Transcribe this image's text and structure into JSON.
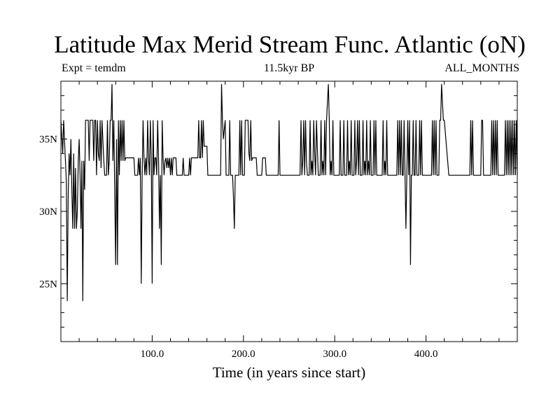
{
  "chart_data": {
    "type": "line",
    "title": "Latitude Max Merid Stream Func. Atlantic (oN)",
    "subtitle": "11.5kyr BP",
    "left_label": "Expt = temdm",
    "right_label": "ALL_MONTHS",
    "xlabel": "Time (in years since start)",
    "ylabel": "",
    "xlim": [
      0,
      500
    ],
    "ylim": [
      21,
      39
    ],
    "xticks": [
      {
        "value": 100,
        "label": "100.0"
      },
      {
        "value": 200,
        "label": "200.0"
      },
      {
        "value": 300,
        "label": "300.0"
      },
      {
        "value": 400,
        "label": "400.0"
      }
    ],
    "yticks": [
      {
        "value": 25,
        "label": "25N"
      },
      {
        "value": 30,
        "label": "30N"
      },
      {
        "value": 35,
        "label": "35N"
      }
    ],
    "series": [
      {
        "name": "Latitude Max Merid Stream Func.",
        "points": [
          [
            0,
            36.3
          ],
          [
            2,
            34.0
          ],
          [
            3,
            36.3
          ],
          [
            5,
            33.5
          ],
          [
            6,
            32.0
          ],
          [
            7,
            23.8
          ],
          [
            8,
            31.0
          ],
          [
            9,
            34.0
          ],
          [
            10,
            32.5
          ],
          [
            11,
            35.0
          ],
          [
            12,
            31.5
          ],
          [
            13,
            28.8
          ],
          [
            14,
            34.0
          ],
          [
            15,
            28.8
          ],
          [
            16,
            33.0
          ],
          [
            17,
            28.8
          ],
          [
            18,
            30.0
          ],
          [
            19,
            33.5
          ],
          [
            20,
            35.0
          ],
          [
            21,
            32.5
          ],
          [
            22,
            28.8
          ],
          [
            23,
            33.5
          ],
          [
            24,
            23.8
          ],
          [
            25,
            33.5
          ],
          [
            26,
            31.5
          ],
          [
            27,
            36.3
          ],
          [
            30,
            36.3
          ],
          [
            31,
            33.5
          ],
          [
            32,
            36.3
          ],
          [
            35,
            36.3
          ],
          [
            36,
            33.5
          ],
          [
            37,
            36.3
          ],
          [
            38,
            36.3
          ],
          [
            39,
            32.5
          ],
          [
            40,
            36.3
          ],
          [
            41,
            34.0
          ],
          [
            42,
            33.5
          ],
          [
            43,
            36.3
          ],
          [
            44,
            33.0
          ],
          [
            45,
            36.3
          ],
          [
            47,
            33.5
          ],
          [
            48,
            32.5
          ],
          [
            50,
            32.5
          ],
          [
            51,
            36.3
          ],
          [
            52,
            32.5
          ],
          [
            53,
            33.5
          ],
          [
            54,
            36.3
          ],
          [
            55,
            36.3
          ],
          [
            56,
            38.8
          ],
          [
            57,
            33.5
          ],
          [
            58,
            36.3
          ],
          [
            60,
            26.3
          ],
          [
            61,
            35.0
          ],
          [
            62,
            26.3
          ],
          [
            63,
            36.3
          ],
          [
            64,
            32.5
          ],
          [
            65,
            36.3
          ],
          [
            66,
            33.5
          ],
          [
            67,
            36.3
          ],
          [
            68,
            33.5
          ],
          [
            69,
            36.3
          ],
          [
            70,
            33.5
          ],
          [
            71,
            33.7
          ],
          [
            80,
            33.7
          ],
          [
            81,
            32.5
          ],
          [
            84,
            32.5
          ],
          [
            85,
            33.7
          ],
          [
            86,
            32.5
          ],
          [
            87,
            33.7
          ],
          [
            88,
            25.0
          ],
          [
            89,
            32.5
          ],
          [
            90,
            36.3
          ],
          [
            91,
            33.7
          ],
          [
            92,
            32.5
          ],
          [
            93,
            33.7
          ],
          [
            94,
            32.5
          ],
          [
            95,
            36.3
          ],
          [
            96,
            33.7
          ],
          [
            97,
            32.5
          ],
          [
            98,
            36.3
          ],
          [
            99,
            33.7
          ],
          [
            100,
            25.0
          ],
          [
            101,
            36.3
          ],
          [
            102,
            32.5
          ],
          [
            103,
            33.7
          ],
          [
            104,
            33.7
          ],
          [
            105,
            32.5
          ],
          [
            106,
            36.3
          ],
          [
            107,
            33.7
          ],
          [
            108,
            28.8
          ],
          [
            109,
            32.5
          ],
          [
            110,
            26.3
          ],
          [
            111,
            36.3
          ],
          [
            112,
            33.7
          ],
          [
            113,
            32.5
          ],
          [
            114,
            33.5
          ],
          [
            115,
            33.7
          ],
          [
            116,
            33.0
          ],
          [
            117,
            33.7
          ],
          [
            118,
            33.0
          ],
          [
            119,
            33.7
          ],
          [
            120,
            32.5
          ],
          [
            121,
            33.7
          ],
          [
            122,
            32.5
          ],
          [
            123,
            33.7
          ],
          [
            126,
            33.7
          ],
          [
            127,
            32.5
          ],
          [
            133,
            32.5
          ],
          [
            134,
            33.7
          ],
          [
            135,
            32.5
          ],
          [
            140,
            32.5
          ],
          [
            141,
            33.7
          ],
          [
            142,
            32.5
          ],
          [
            143,
            33.7
          ],
          [
            150,
            33.7
          ],
          [
            151,
            36.3
          ],
          [
            152,
            33.7
          ],
          [
            153,
            33.7
          ],
          [
            154,
            36.3
          ],
          [
            155,
            33.7
          ],
          [
            156,
            36.3
          ],
          [
            157,
            34.5
          ],
          [
            160,
            34.5
          ],
          [
            161,
            32.5
          ],
          [
            175,
            32.5
          ],
          [
            176,
            38.8
          ],
          [
            177,
            36.3
          ],
          [
            178,
            35.0
          ],
          [
            180,
            36.3
          ],
          [
            181,
            32.5
          ],
          [
            184,
            32.5
          ],
          [
            185,
            36.3
          ],
          [
            186,
            32.5
          ],
          [
            188,
            32.5
          ],
          [
            189,
            31.0
          ],
          [
            190,
            28.8
          ],
          [
            191,
            32.5
          ],
          [
            195,
            32.5
          ],
          [
            196,
            36.3
          ],
          [
            197,
            32.5
          ],
          [
            198,
            36.3
          ],
          [
            199,
            32.5
          ],
          [
            201,
            32.5
          ],
          [
            202,
            36.3
          ],
          [
            205,
            36.3
          ],
          [
            206,
            34.0
          ],
          [
            207,
            33.5
          ],
          [
            208,
            36.3
          ],
          [
            209,
            33.5
          ],
          [
            210,
            33.7
          ],
          [
            214,
            33.7
          ],
          [
            215,
            32.5
          ],
          [
            220,
            32.5
          ],
          [
            221,
            33.7
          ],
          [
            224,
            33.7
          ],
          [
            225,
            32.5
          ],
          [
            238,
            32.5
          ],
          [
            239,
            36.3
          ],
          [
            240,
            32.5
          ],
          [
            262,
            32.5
          ],
          [
            263,
            36.3
          ],
          [
            264,
            32.5
          ],
          [
            265,
            33.5
          ],
          [
            266,
            36.3
          ],
          [
            267,
            32.5
          ],
          [
            268,
            36.3
          ],
          [
            269,
            33.5
          ],
          [
            270,
            32.5
          ],
          [
            272,
            32.5
          ],
          [
            273,
            36.3
          ],
          [
            274,
            32.5
          ],
          [
            275,
            33.5
          ],
          [
            276,
            32.5
          ],
          [
            277,
            36.3
          ],
          [
            278,
            34.0
          ],
          [
            279,
            32.5
          ],
          [
            280,
            36.3
          ],
          [
            282,
            32.5
          ],
          [
            284,
            32.5
          ],
          [
            285,
            36.3
          ],
          [
            286,
            32.5
          ],
          [
            287,
            33.5
          ],
          [
            288,
            32.5
          ],
          [
            289,
            36.3
          ],
          [
            290,
            32.5
          ],
          [
            291,
            36.3
          ],
          [
            293,
            38.8
          ],
          [
            294,
            36.3
          ],
          [
            295,
            32.5
          ],
          [
            296,
            33.5
          ],
          [
            297,
            32.5
          ],
          [
            298,
            36.3
          ],
          [
            299,
            32.5
          ],
          [
            305,
            32.5
          ],
          [
            306,
            36.3
          ],
          [
            307,
            32.5
          ],
          [
            309,
            32.5
          ],
          [
            310,
            36.3
          ],
          [
            311,
            32.5
          ],
          [
            313,
            32.5
          ],
          [
            314,
            36.3
          ],
          [
            315,
            32.5
          ],
          [
            316,
            33.5
          ],
          [
            317,
            32.5
          ],
          [
            318,
            36.3
          ],
          [
            319,
            32.5
          ],
          [
            321,
            32.5
          ],
          [
            322,
            36.3
          ],
          [
            323,
            32.5
          ],
          [
            324,
            33.5
          ],
          [
            325,
            36.3
          ],
          [
            326,
            32.5
          ],
          [
            327,
            36.3
          ],
          [
            328,
            32.5
          ],
          [
            330,
            32.5
          ],
          [
            331,
            36.3
          ],
          [
            332,
            32.5
          ],
          [
            333,
            33.5
          ],
          [
            334,
            32.5
          ],
          [
            335,
            36.3
          ],
          [
            336,
            32.5
          ],
          [
            337,
            33.5
          ],
          [
            338,
            32.5
          ],
          [
            339,
            36.3
          ],
          [
            340,
            32.5
          ],
          [
            342,
            32.5
          ],
          [
            343,
            36.3
          ],
          [
            344,
            32.5
          ],
          [
            345,
            36.3
          ],
          [
            346,
            32.5
          ],
          [
            352,
            32.5
          ],
          [
            353,
            36.3
          ],
          [
            354,
            32.5
          ],
          [
            355,
            33.5
          ],
          [
            356,
            32.5
          ],
          [
            357,
            36.3
          ],
          [
            358,
            32.5
          ],
          [
            368,
            32.5
          ],
          [
            369,
            36.3
          ],
          [
            370,
            32.5
          ],
          [
            371,
            36.3
          ],
          [
            372,
            32.5
          ],
          [
            373,
            36.3
          ],
          [
            374,
            32.5
          ],
          [
            375,
            32.5
          ],
          [
            376,
            36.3
          ],
          [
            377,
            32.5
          ],
          [
            378,
            28.8
          ],
          [
            379,
            32.5
          ],
          [
            380,
            36.3
          ],
          [
            381,
            32.5
          ],
          [
            382,
            36.3
          ],
          [
            383,
            26.3
          ],
          [
            384,
            32.5
          ],
          [
            385,
            32.5
          ],
          [
            386,
            36.3
          ],
          [
            387,
            32.5
          ],
          [
            388,
            32.5
          ],
          [
            389,
            36.3
          ],
          [
            390,
            32.5
          ],
          [
            392,
            32.5
          ],
          [
            393,
            36.3
          ],
          [
            394,
            32.5
          ],
          [
            395,
            36.3
          ],
          [
            396,
            32.5
          ],
          [
            406,
            32.5
          ],
          [
            407,
            36.3
          ],
          [
            408,
            32.5
          ],
          [
            409,
            36.3
          ],
          [
            410,
            32.5
          ],
          [
            411,
            36.3
          ],
          [
            412,
            32.5
          ],
          [
            414,
            32.5
          ],
          [
            415,
            36.3
          ],
          [
            416,
            36.3
          ],
          [
            417,
            38.8
          ],
          [
            418,
            37.5
          ],
          [
            419,
            36.3
          ],
          [
            420,
            36.3
          ],
          [
            425,
            32.5
          ],
          [
            448,
            32.5
          ],
          [
            449,
            36.3
          ],
          [
            450,
            32.5
          ],
          [
            451,
            36.3
          ],
          [
            452,
            32.5
          ],
          [
            460,
            32.5
          ],
          [
            461,
            36.3
          ],
          [
            462,
            36.3
          ],
          [
            463,
            32.5
          ],
          [
            471,
            32.5
          ],
          [
            472,
            36.3
          ],
          [
            473,
            32.5
          ],
          [
            474,
            36.3
          ],
          [
            475,
            32.5
          ],
          [
            476,
            36.3
          ],
          [
            477,
            32.5
          ],
          [
            478,
            36.3
          ],
          [
            479,
            32.5
          ],
          [
            486,
            32.5
          ],
          [
            487,
            36.3
          ],
          [
            488,
            32.5
          ],
          [
            489,
            36.3
          ],
          [
            490,
            32.5
          ],
          [
            491,
            36.3
          ],
          [
            492,
            32.5
          ],
          [
            493,
            36.3
          ],
          [
            494,
            32.5
          ],
          [
            495,
            36.3
          ],
          [
            496,
            32.5
          ],
          [
            497,
            36.3
          ],
          [
            498,
            32.5
          ],
          [
            499,
            36.3
          ],
          [
            500,
            32.5
          ]
        ]
      }
    ],
    "grid": false,
    "legend": "none"
  }
}
